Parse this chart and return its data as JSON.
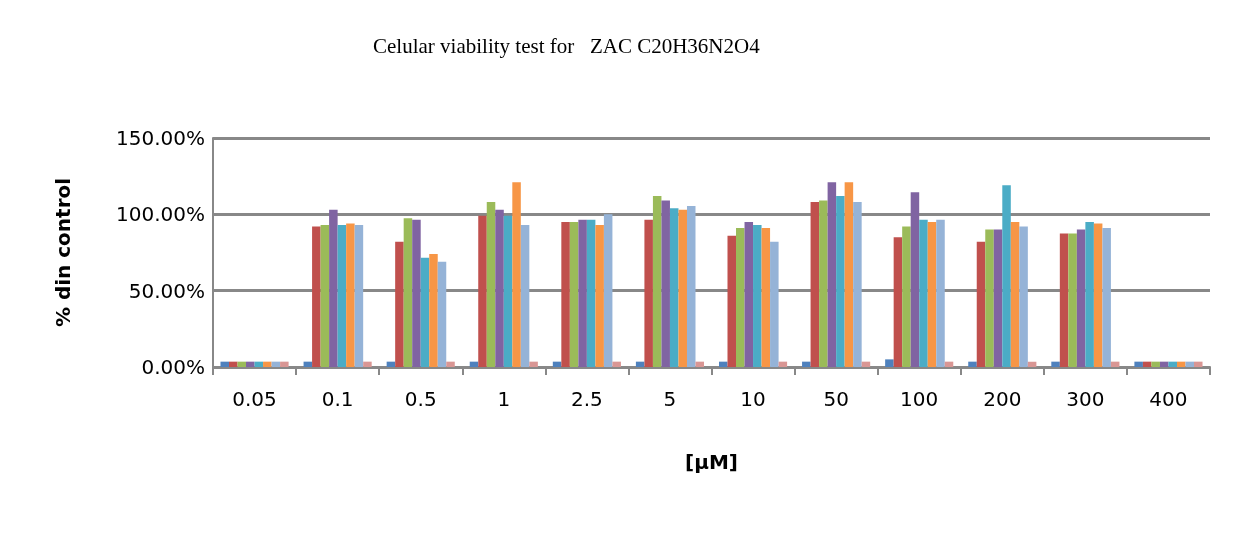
{
  "chart_data": {
    "type": "bar",
    "title": "Celular viability test for   ZAC C20H36N2O4",
    "xlabel": "[μM]",
    "ylabel": "% din control",
    "categories": [
      "0.05",
      "0.1",
      "0.5",
      "1",
      "2.5",
      "5",
      "10",
      "50",
      "100",
      "200",
      "300",
      "400"
    ],
    "series": [
      {
        "color": "#4f81bd",
        "values": [
          3.5,
          3.5,
          3.5,
          3.5,
          3.5,
          3.5,
          3.5,
          3.5,
          5,
          3.5,
          3.5,
          3.5
        ]
      },
      {
        "color": "#c0504d",
        "values": [
          3.5,
          92,
          82,
          99,
          95,
          96.5,
          86,
          108,
          85,
          82,
          87.5,
          3.5
        ]
      },
      {
        "color": "#9bbb59",
        "values": [
          3.5,
          93,
          97.5,
          108,
          95,
          112,
          91,
          109,
          92,
          90,
          87.5,
          3.5
        ]
      },
      {
        "color": "#8064a2",
        "values": [
          3.5,
          103,
          96.5,
          103,
          96.5,
          109,
          95,
          121,
          114.5,
          90,
          90,
          3.5
        ]
      },
      {
        "color": "#4bacc6",
        "values": [
          3.5,
          93,
          71.5,
          99,
          96.5,
          104,
          93,
          112,
          96.5,
          119,
          95,
          3.5
        ]
      },
      {
        "color": "#f79646",
        "values": [
          3.5,
          94,
          74,
          121,
          93,
          103,
          91,
          121,
          95,
          95,
          94,
          3.5
        ]
      },
      {
        "color": "#95b3d7",
        "values": [
          3.5,
          93,
          69,
          93,
          100,
          105.5,
          82,
          108,
          96.5,
          92,
          91,
          3.5
        ]
      },
      {
        "color": "#d99694",
        "values": [
          3.5,
          3.5,
          3.5,
          3.5,
          3.5,
          3.5,
          3.5,
          3.5,
          3.5,
          3.5,
          3.5,
          3.5
        ]
      }
    ],
    "ylim": [
      0,
      150
    ],
    "yticks": [
      {
        "value": 0,
        "label": "0.00%"
      },
      {
        "value": 50,
        "label": "50.00%"
      },
      {
        "value": 100,
        "label": "100.00%"
      },
      {
        "value": 150,
        "label": "150.00%"
      }
    ],
    "grid": "y"
  }
}
